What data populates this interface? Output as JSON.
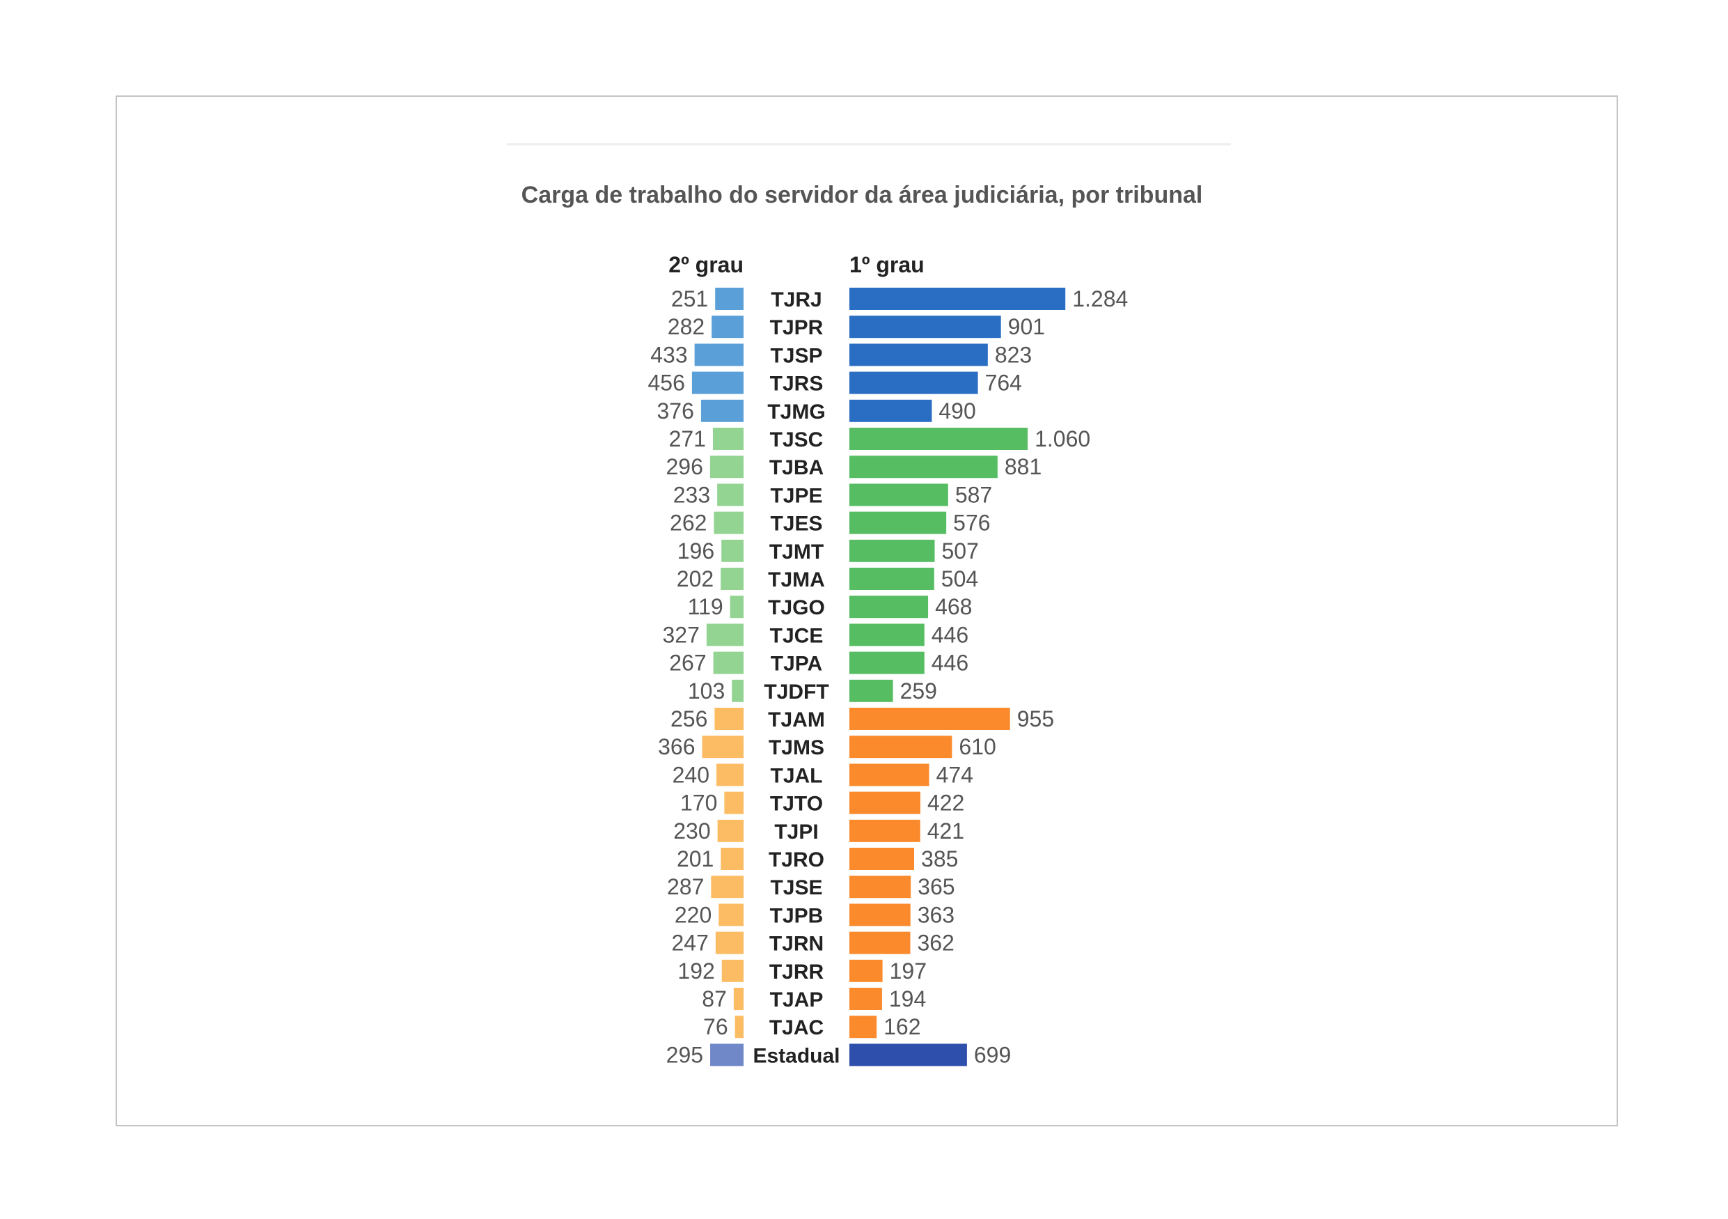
{
  "chart_data": {
    "type": "bar",
    "layout": "butterfly",
    "title": "Carga de trabalho do servidor da área judiciária, por tribunal",
    "series": [
      {
        "name": "2º grau",
        "side": "left",
        "values": [
          251,
          282,
          433,
          456,
          376,
          271,
          296,
          233,
          262,
          196,
          202,
          119,
          327,
          267,
          103,
          256,
          366,
          240,
          170,
          230,
          201,
          287,
          220,
          247,
          192,
          87,
          76,
          295
        ],
        "labels": [
          "251",
          "282",
          "433",
          "456",
          "376",
          "271",
          "296",
          "233",
          "262",
          "196",
          "202",
          "119",
          "327",
          "267",
          "103",
          "256",
          "366",
          "240",
          "170",
          "230",
          "201",
          "287",
          "220",
          "247",
          "192",
          "87",
          "76",
          "295"
        ]
      },
      {
        "name": "1º grau",
        "side": "right",
        "values": [
          1284,
          901,
          823,
          764,
          490,
          1060,
          881,
          587,
          576,
          507,
          504,
          468,
          446,
          446,
          259,
          955,
          610,
          474,
          422,
          421,
          385,
          365,
          363,
          362,
          197,
          194,
          162,
          699
        ],
        "labels": [
          "1.284",
          "901",
          "823",
          "764",
          "490",
          "1.060",
          "881",
          "587",
          "576",
          "507",
          "504",
          "468",
          "446",
          "446",
          "259",
          "955",
          "610",
          "474",
          "422",
          "421",
          "385",
          "365",
          "363",
          "362",
          "197",
          "194",
          "162",
          "699"
        ]
      }
    ],
    "categories": [
      "TJRJ",
      "TJPR",
      "TJSP",
      "TJRS",
      "TJMG",
      "TJSC",
      "TJBA",
      "TJPE",
      "TJES",
      "TJMT",
      "TJMA",
      "TJGO",
      "TJCE",
      "TJPA",
      "TJDFT",
      "TJAM",
      "TJMS",
      "TJAL",
      "TJTO",
      "TJPI",
      "TJRO",
      "TJSE",
      "TJPB",
      "TJRN",
      "TJRR",
      "TJAP",
      "TJAC",
      "Estadual"
    ],
    "groups": [
      {
        "from": 0,
        "to": 4,
        "left_color": "#5a9fd8",
        "right_color": "#2a6ec4"
      },
      {
        "from": 5,
        "to": 14,
        "left_color": "#93d492",
        "right_color": "#56bd62"
      },
      {
        "from": 15,
        "to": 26,
        "left_color": "#fcbc64",
        "right_color": "#fa8a2c"
      },
      {
        "from": 27,
        "to": 27,
        "left_color": "#7088c8",
        "right_color": "#2f4fac"
      }
    ],
    "grid": false,
    "legend": "top"
  }
}
